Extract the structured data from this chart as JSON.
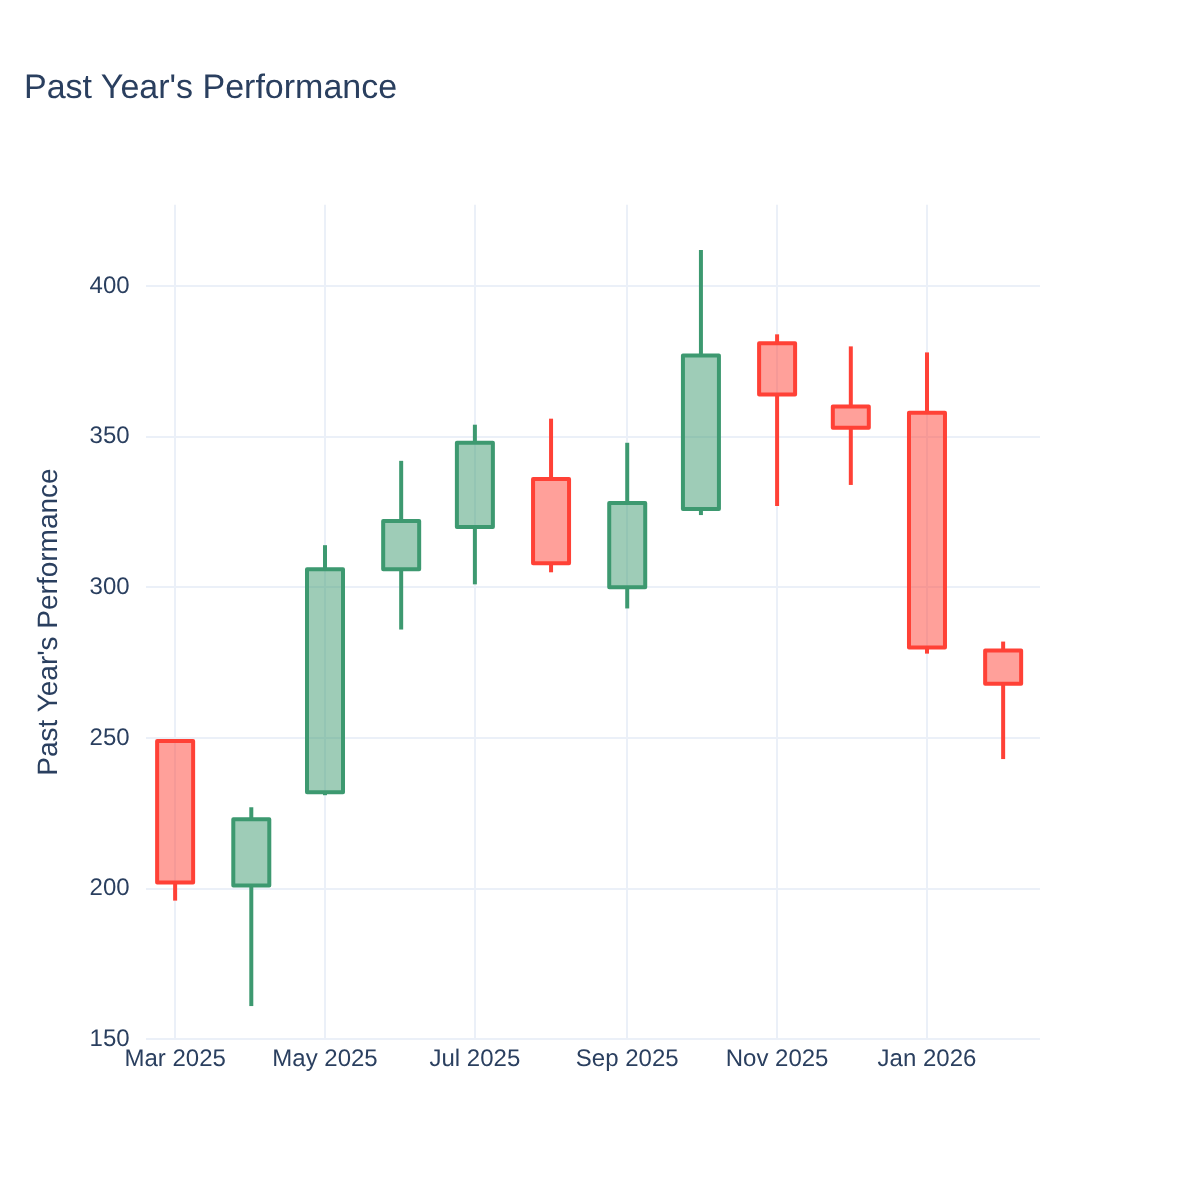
{
  "chart_data": {
    "type": "candlestick",
    "title": "Past Year's Performance",
    "ylabel": "Past Year's Performance",
    "x": [
      "2025-03",
      "2025-04",
      "2025-05",
      "2025-06",
      "2025-07",
      "2025-08",
      "2025-09",
      "2025-10",
      "2025-11",
      "2025-12",
      "2026-01",
      "2026-02"
    ],
    "ohlc": [
      [
        249,
        249,
        196,
        202
      ],
      [
        201,
        227,
        161,
        223
      ],
      [
        232,
        314,
        231,
        306
      ],
      [
        306,
        342,
        286,
        322
      ],
      [
        320,
        354,
        301,
        348
      ],
      [
        336,
        356,
        305,
        308
      ],
      [
        300,
        348,
        293,
        328
      ],
      [
        326,
        412,
        324,
        377
      ],
      [
        381,
        384,
        327,
        364
      ],
      [
        360,
        380,
        334,
        353
      ],
      [
        358,
        378,
        278,
        280
      ],
      [
        279,
        282,
        243,
        268
      ]
    ],
    "colors": [
      "#ff4136",
      "#3d9970",
      "#3d9970",
      "#3d9970",
      "#3d9970",
      "#ff4136",
      "#3d9970",
      "#3d9970",
      "#ff4136",
      "#ff4136",
      "#ff4136",
      "#ff4136"
    ],
    "xlim": [
      "2025-02-17",
      "2026-02-16"
    ],
    "xticks": [
      {
        "value": "2025-03",
        "label": "Mar 2025"
      },
      {
        "value": "2025-05",
        "label": "May 2025"
      },
      {
        "value": "2025-07",
        "label": "Jul 2025"
      },
      {
        "value": "2025-09",
        "label": "Sep 2025"
      },
      {
        "value": "2025-11",
        "label": "Nov 2025"
      },
      {
        "value": "2026-01",
        "label": "Jan 2026"
      }
    ],
    "ylim": [
      150,
      427
    ],
    "yticks": [
      150,
      200,
      250,
      300,
      350,
      400
    ],
    "grid": true,
    "legend": false
  }
}
